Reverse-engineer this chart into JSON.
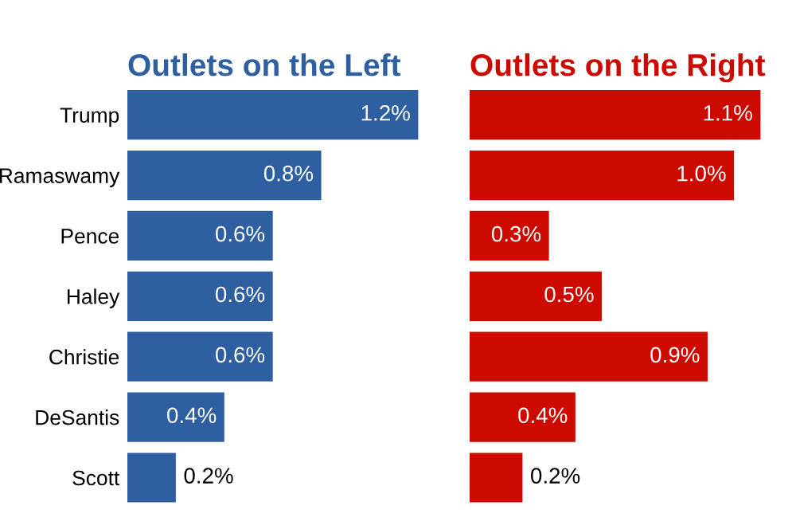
{
  "chart_data": [
    {
      "type": "bar",
      "orientation": "horizontal",
      "title": "Outlets on the Left",
      "categories": [
        "Trump",
        "Ramaswamy",
        "Pence",
        "Haley",
        "Christie",
        "DeSantis",
        "Scott"
      ],
      "series": [
        {
          "color": "#2e5fa1",
          "values": [
            1.2,
            0.8,
            0.6,
            0.6,
            0.6,
            0.4,
            0.2
          ],
          "value_labels": [
            "1.2%",
            "0.8%",
            "0.6%",
            "0.6%",
            "0.6%",
            "0.4%",
            "0.2%"
          ]
        }
      ],
      "tick_labels": "y",
      "grid": false,
      "legend": false
    },
    {
      "type": "bar",
      "orientation": "horizontal",
      "title": "Outlets on the Right",
      "categories": [
        null,
        null,
        null,
        null,
        null,
        null,
        null
      ],
      "series": [
        {
          "color": "#cc0a00",
          "values": [
            1.1,
            1.0,
            0.3,
            0.5,
            0.9,
            0.4,
            0.2
          ],
          "value_labels": [
            "1.1%",
            "1.0%",
            "0.3%",
            "0.5%",
            "0.9%",
            "0.4%",
            "0.2%"
          ]
        }
      ],
      "tick_labels": false,
      "grid": false,
      "legend": false
    }
  ]
}
